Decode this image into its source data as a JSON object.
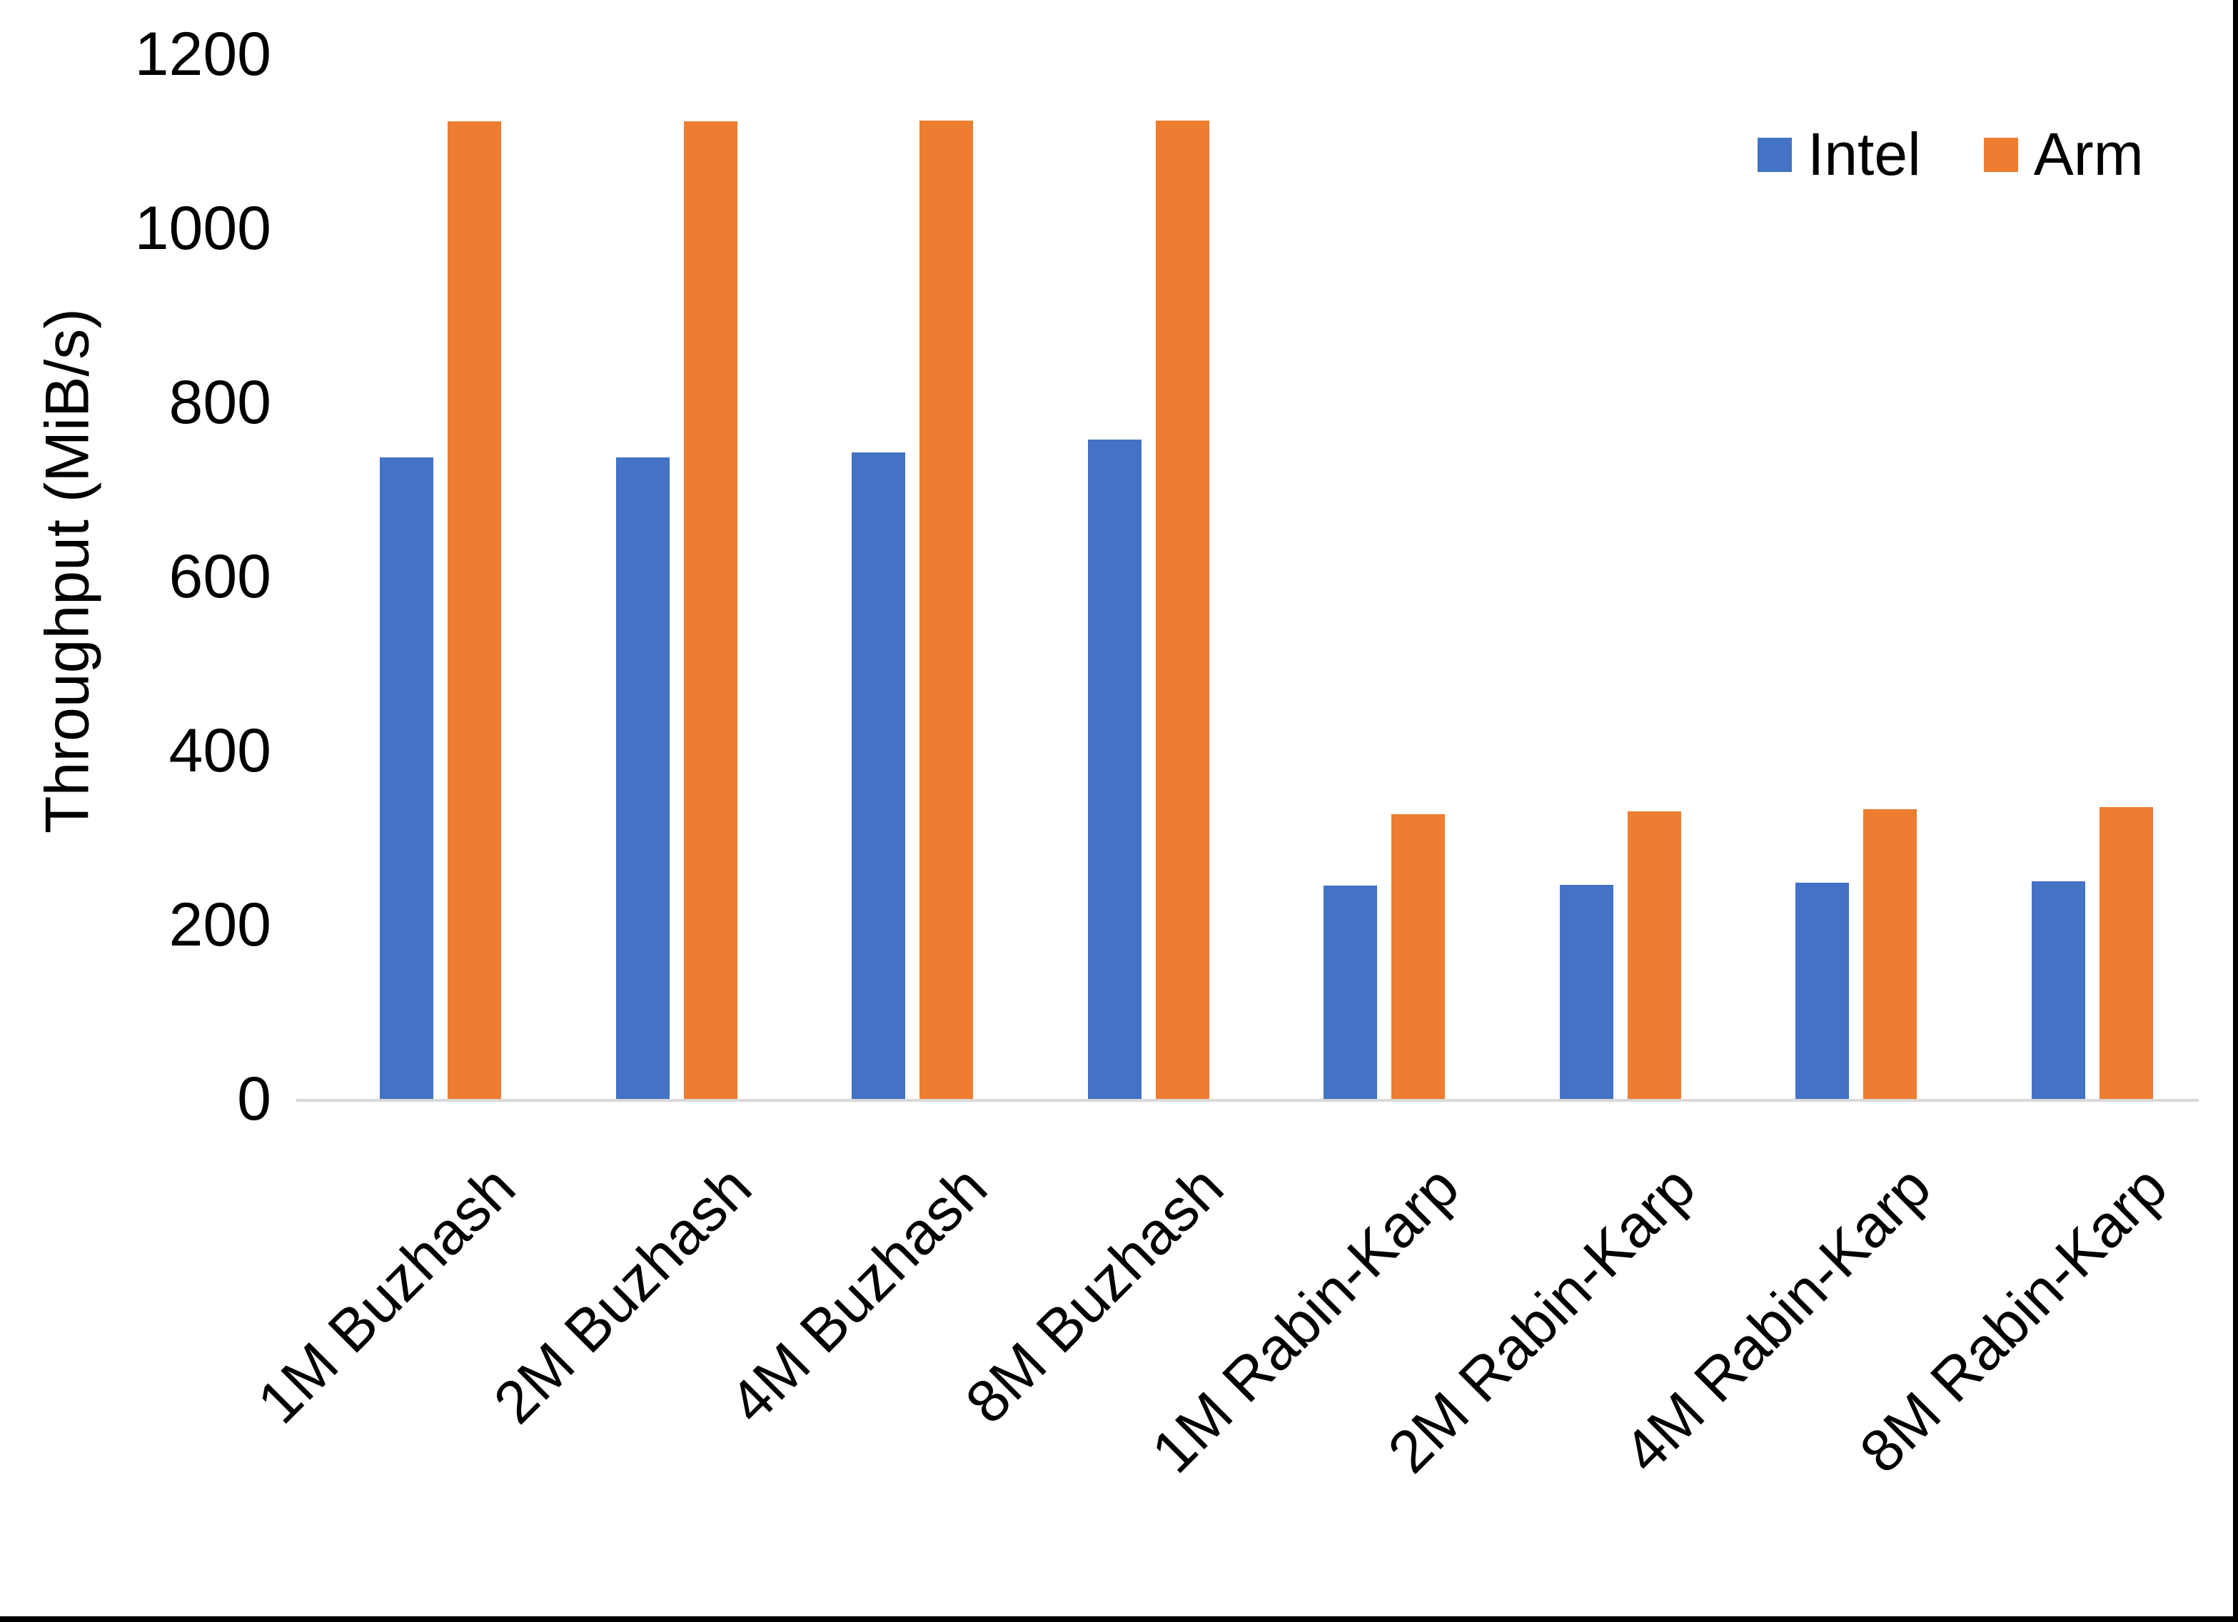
{
  "chart_data": {
    "type": "bar",
    "categories": [
      "1M Buzhash",
      "2M Buzhash",
      "4M Buzhash",
      "8M Buzhash",
      "1M Rabin-Karp",
      "2M Rabin-Karp",
      "4M Rabin-Karp",
      "8M Rabin-Karp"
    ],
    "series": [
      {
        "name": "Intel",
        "color": "#4472C4",
        "values": [
          737,
          737,
          743,
          757,
          245,
          246,
          248,
          250
        ]
      },
      {
        "name": "Arm",
        "color": "#ED7D31",
        "values": [
          1123,
          1123,
          1124,
          1124,
          327,
          330,
          333,
          335
        ]
      }
    ],
    "title": "",
    "xlabel": "",
    "ylabel": "Throughput (MiB/s)",
    "ylim": [
      0,
      1200
    ],
    "yticks": [
      0,
      200,
      400,
      600,
      800,
      1000,
      1200
    ],
    "grid": false,
    "legend_position": "top-right",
    "legend_entries": [
      "Intel",
      "Arm"
    ]
  },
  "colors": {
    "axis_line": "#D9D9D9",
    "text": "#000000",
    "frame_edge": "#000000",
    "background": "#FFFFFF"
  }
}
